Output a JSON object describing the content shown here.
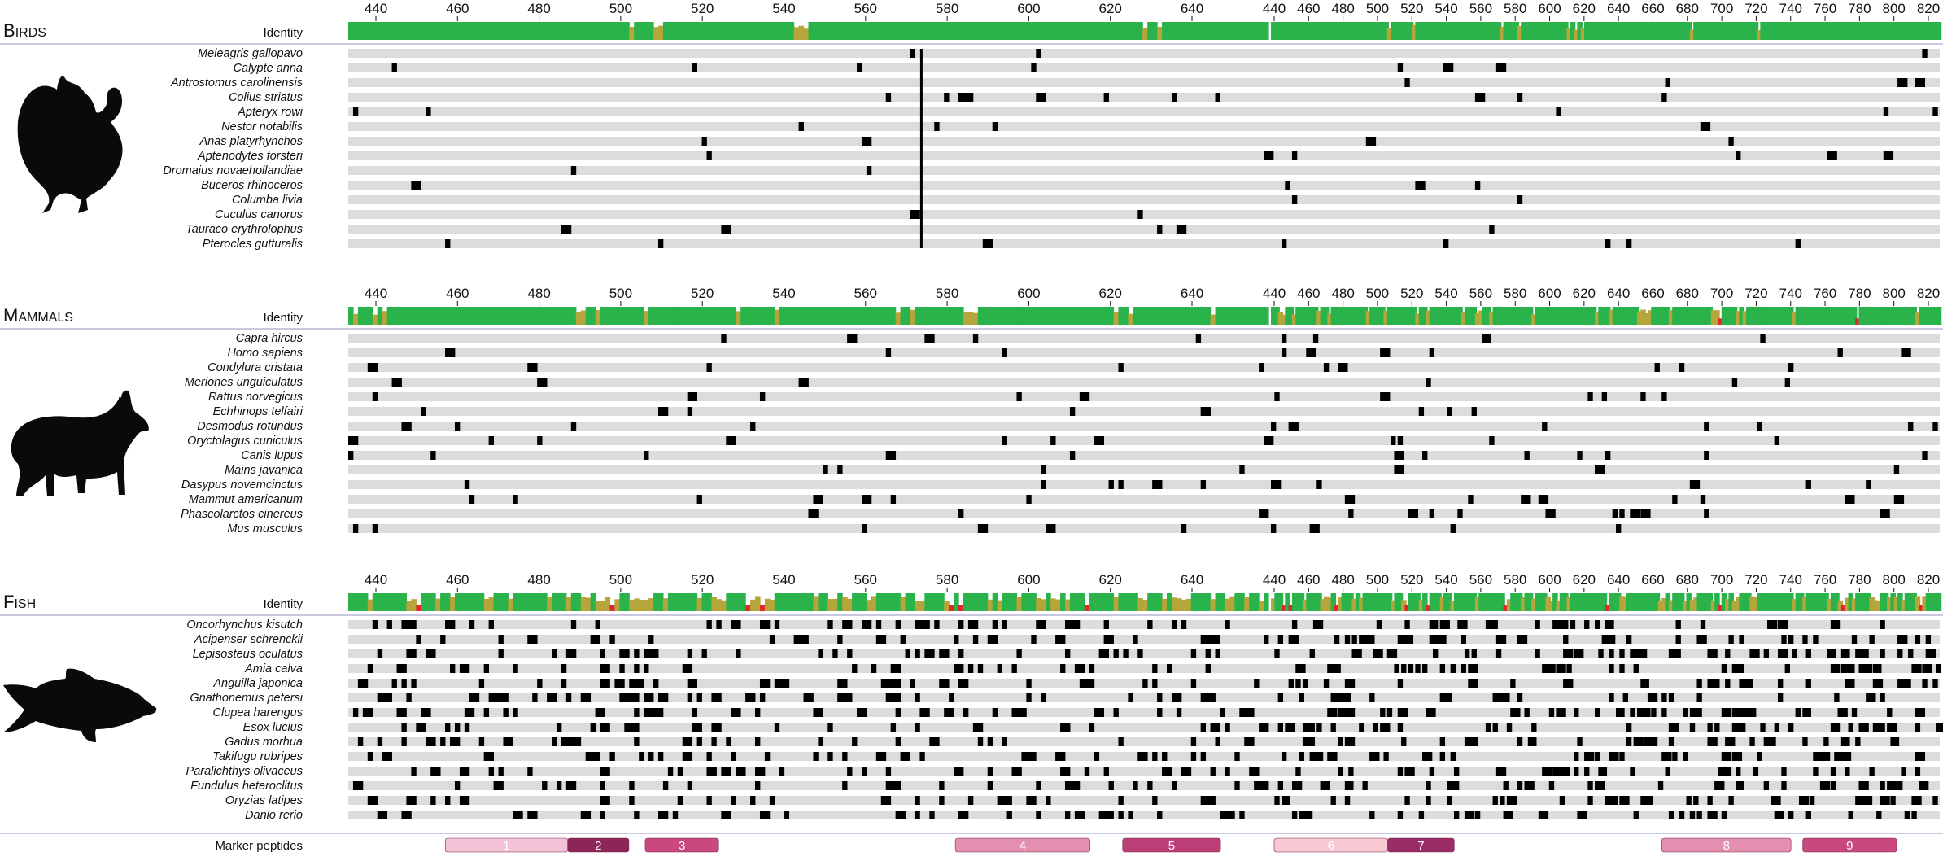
{
  "chart_data": {
    "type": "heatmap",
    "description_free": true,
    "axis": {
      "ticks_segment1": [
        440,
        460,
        480,
        500,
        520,
        540,
        560,
        580,
        600,
        620,
        640
      ],
      "ticks_segment2": [
        440,
        460,
        480,
        500,
        520,
        540,
        560,
        580,
        600,
        620,
        640,
        660,
        680,
        700,
        720,
        740,
        760,
        780,
        800,
        820
      ],
      "segment1_range": [
        437,
        567
      ],
      "segment2_range": [
        1,
        566
      ]
    },
    "identity_label": "Identity",
    "colors": {
      "identity_high": "#2ab34a",
      "identity_mid": "#b5a53a",
      "identity_low": "#e3262b",
      "row_background": "#dcdcdc",
      "variant": "#000000",
      "separator": "#b9b5d6"
    },
    "panels": [
      {
        "name_cap": "B",
        "name_rest": "IRDS",
        "icon": "turkey-silhouette-icon",
        "species": [
          "Meleagris gallopavo",
          "Calypte anna",
          "Antrostomus carolinensis",
          "Colius striatus",
          "Apteryx rowi",
          "Nestor notabilis",
          "Anas platyrhynchos",
          "Aptenodytes forsteri",
          "Dromaius novaehollandiae",
          "Buceros rhinoceros",
          "Columba livia",
          "Cuculus canorus",
          "Tauraco erythrolophus",
          "Pterocles gutturalis"
        ],
        "density": 0.012,
        "identity_mid_rate": 0.05,
        "identity_low_rate": 0.0
      },
      {
        "name_cap": "M",
        "name_rest": "AMMALS",
        "icon": "goat-silhouette-icon",
        "species": [
          "Capra hircus",
          "Homo sapiens",
          "Condylura cristata",
          "Meriones unguiculatus",
          "Rattus norvegicus",
          "Echhinops telfairi",
          "Desmodus rotundus",
          "Oryctolagus cuniculus",
          "Canis lupus",
          "Mains javanica",
          "Dasypus novemcinctus",
          "Mammut americanum",
          "Phascolarctos cinereus",
          "Mus musculus"
        ],
        "density": 0.028,
        "identity_mid_rate": 0.14,
        "identity_low_rate": 0.005
      },
      {
        "name_cap": "F",
        "name_rest": "ISH",
        "icon": "fish-silhouette-icon",
        "species": [
          "Oncorhynchus kisutch",
          "Acipenser schrenckii",
          "Lepisosteus oculatus",
          "Amia calva",
          "Anguilla japonica",
          "Gnathonemus petersi",
          "Clupea harengus",
          "Esox lucius",
          "Gadus morhua",
          "Takifugu rubripes",
          "Paralichthys olivaceus",
          "Fundulus heteroclitus",
          "Oryzias latipes",
          "Danio rerio"
        ],
        "density": 0.16,
        "identity_mid_rate": 0.3,
        "identity_low_rate": 0.04
      }
    ],
    "marker_peptides": {
      "label": "Marker peptides",
      "items": [
        {
          "id": "1",
          "segment": 1,
          "start": 457,
          "end": 487,
          "color": "#f4c2d6"
        },
        {
          "id": "2",
          "segment": 1,
          "start": 487,
          "end": 502,
          "color": "#8c2558"
        },
        {
          "id": "3",
          "segment": 1,
          "start": 506,
          "end": 524,
          "color": "#c9487e"
        },
        {
          "id": "4",
          "segment": 1,
          "start": 582,
          "end": 615,
          "color": "#e58fb0"
        },
        {
          "id": "5",
          "segment": 1,
          "start": 623,
          "end": 647,
          "color": "#bd3f78"
        },
        {
          "id": "6",
          "segment": 2,
          "start": 1,
          "end": 30,
          "color": "#f7c9d3"
        },
        {
          "id": "7",
          "segment": 2,
          "start": 30,
          "end": 47,
          "color": "#9b2d66"
        },
        {
          "id": "8",
          "segment": 2,
          "start": 100,
          "end": 133,
          "color": "#e58fb0"
        },
        {
          "id": "9",
          "segment": 2,
          "start": 136,
          "end": 160,
          "color": "#c9487e"
        }
      ]
    }
  }
}
